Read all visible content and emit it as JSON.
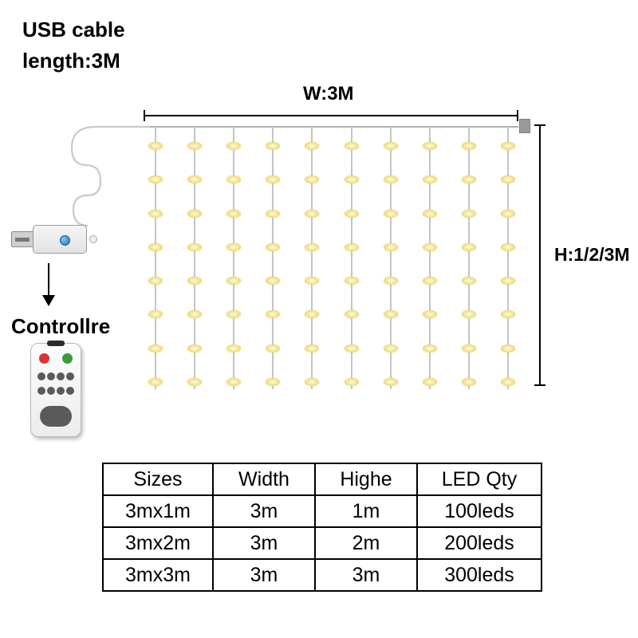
{
  "header": {
    "line1": "USB cable",
    "line2": "length:3M"
  },
  "dimensions": {
    "width_label": "W:3M",
    "height_label": "H:1/2/3M"
  },
  "controller_label": "Controllre",
  "curtain": {
    "strand_count": 10,
    "leds_per_strand": 8,
    "strand_color": "#c4c4c4",
    "led_color_inner": "#fffbe0",
    "led_color_outer": "#d8c050"
  },
  "usb": {
    "button_color": "#1d6fb8"
  },
  "remote": {
    "power_color": "#d33",
    "aux_color": "#3a9b3a",
    "button_color": "#5a5a5a"
  },
  "table": {
    "columns": [
      "Sizes",
      "Width",
      "Highe",
      "LED Qty"
    ],
    "rows": [
      [
        "3mx1m",
        "3m",
        "1m",
        "100leds"
      ],
      [
        "3mx2m",
        "3m",
        "2m",
        "200leds"
      ],
      [
        "3mx3m",
        "3m",
        "3m",
        "300leds"
      ]
    ],
    "border_color": "#000000",
    "font_size": 25
  },
  "colors": {
    "background": "#ffffff",
    "text": "#000000",
    "dim_line": "#000000"
  }
}
